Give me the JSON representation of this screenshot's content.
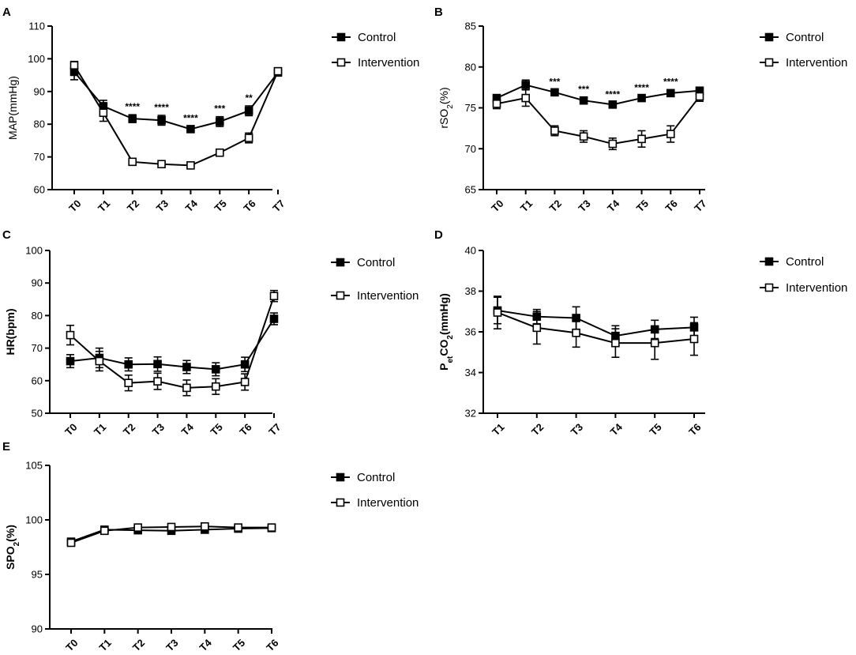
{
  "figure": {
    "legend_labels": {
      "control": "Control",
      "intervention": "Intervention"
    },
    "colors": {
      "line": "#000000",
      "control_fill": "#000000",
      "intervention_fill": "#ffffff"
    }
  },
  "chart_data": [
    {
      "id": "A",
      "panel_label": "A",
      "type": "line",
      "ylabel": "MAP(mmHg)",
      "ylabel_main": "MAP(mmHg)",
      "ylabel_sub": "",
      "ylabel_post": "",
      "ylabel_bold": false,
      "ylim": [
        60,
        110
      ],
      "yticks": [
        60,
        70,
        80,
        90,
        100,
        110
      ],
      "categories": [
        "T0",
        "T1",
        "T2",
        "T3",
        "T4",
        "T5",
        "T6",
        "T7"
      ],
      "series": [
        {
          "name": "Control",
          "values": [
            96,
            85.5,
            81.7,
            81.2,
            78.5,
            80.8,
            84.1,
            95.8
          ],
          "errors": [
            2.4,
            1.8,
            1.2,
            1.5,
            1.0,
            1.5,
            1.5,
            0.8
          ]
        },
        {
          "name": "Intervention",
          "values": [
            98,
            83.5,
            68.5,
            67.8,
            67.4,
            71.3,
            75.8,
            96.2
          ],
          "errors": [
            1.2,
            2.6,
            0.9,
            0.5,
            0.7,
            1.0,
            1.5,
            0.6
          ]
        }
      ],
      "significance": [
        {
          "category": "T2",
          "label": "****"
        },
        {
          "category": "T3",
          "label": "****"
        },
        {
          "category": "T4",
          "label": "****"
        },
        {
          "category": "T5",
          "label": "***"
        },
        {
          "category": "T6",
          "label": "**"
        }
      ]
    },
    {
      "id": "B",
      "panel_label": "B",
      "type": "line",
      "ylabel": "rSO2(%)",
      "ylabel_main": "rSO",
      "ylabel_sub": "2",
      "ylabel_post": "(%)",
      "ylabel_bold": false,
      "ylim": [
        65,
        85
      ],
      "yticks": [
        65,
        70,
        75,
        80,
        85
      ],
      "categories": [
        "T0",
        "T1",
        "T2",
        "T3",
        "T4",
        "T5",
        "T6",
        "T7"
      ],
      "series": [
        {
          "name": "Control",
          "values": [
            76.2,
            77.8,
            76.9,
            75.9,
            75.4,
            76.2,
            76.8,
            77.1
          ],
          "errors": [
            0.4,
            0.6,
            0.3,
            0.4,
            0.3,
            0.3,
            0.4,
            0.4
          ]
        },
        {
          "name": "Intervention",
          "values": [
            75.5,
            76.2,
            72.2,
            71.5,
            70.6,
            71.2,
            71.8,
            76.4
          ],
          "errors": [
            0.6,
            1.0,
            0.6,
            0.7,
            0.7,
            1.0,
            1.0,
            0.6
          ]
        }
      ],
      "significance": [
        {
          "category": "T2",
          "label": "***"
        },
        {
          "category": "T3",
          "label": "***"
        },
        {
          "category": "T4",
          "label": "****"
        },
        {
          "category": "T5",
          "label": "****"
        },
        {
          "category": "T6",
          "label": "****"
        }
      ]
    },
    {
      "id": "C",
      "panel_label": "C",
      "type": "line",
      "ylabel": "HR(bpm)",
      "ylabel_main": "HR(bpm)",
      "ylabel_sub": "",
      "ylabel_post": "",
      "ylabel_bold": true,
      "ylim": [
        50,
        100
      ],
      "yticks": [
        50,
        60,
        70,
        80,
        90,
        100
      ],
      "categories": [
        "T0",
        "T1",
        "T2",
        "T3",
        "T4",
        "T5",
        "T6",
        "T7"
      ],
      "series": [
        {
          "name": "Control",
          "values": [
            66,
            67,
            65,
            65.1,
            64.2,
            63.5,
            65,
            79
          ],
          "errors": [
            2,
            3,
            2,
            2.2,
            2,
            2,
            2.2,
            1.8
          ]
        },
        {
          "name": "Intervention",
          "values": [
            74,
            66,
            59.3,
            59.8,
            57.8,
            58.2,
            59.6,
            86
          ],
          "errors": [
            3,
            3,
            2.4,
            2.5,
            2.4,
            2.4,
            2.5,
            1.7
          ]
        }
      ],
      "significance": []
    },
    {
      "id": "D",
      "panel_label": "D",
      "type": "line",
      "ylabel": "PetCO2(mmHg)",
      "ylabel_main": "P",
      "ylabel_sub": "et",
      "ylabel_main2": "CO",
      "ylabel_sub2": "2",
      "ylabel_post": "(mmHg)",
      "ylabel_bold": true,
      "ylim": [
        32,
        40
      ],
      "yticks": [
        32,
        34,
        36,
        38,
        40
      ],
      "categories": [
        "T1",
        "T2",
        "T3",
        "T4",
        "T5",
        "T6"
      ],
      "series": [
        {
          "name": "Control",
          "values": [
            37.05,
            36.75,
            36.68,
            35.8,
            36.12,
            36.22
          ],
          "errors": [
            0.65,
            0.35,
            0.55,
            0.5,
            0.45,
            0.5
          ]
        },
        {
          "name": "Intervention",
          "values": [
            36.95,
            36.2,
            35.95,
            35.45,
            35.45,
            35.65
          ],
          "errors": [
            0.8,
            0.8,
            0.7,
            0.7,
            0.8,
            0.8
          ]
        }
      ],
      "significance": []
    },
    {
      "id": "E",
      "panel_label": "E",
      "type": "line",
      "ylabel": "SPO2(%)",
      "ylabel_main": "SPO",
      "ylabel_sub": "2",
      "ylabel_post": "(%)",
      "ylabel_bold": true,
      "ylim": [
        90,
        105
      ],
      "yticks": [
        90,
        95,
        100,
        105
      ],
      "categories": [
        "T0",
        "T1",
        "T2",
        "T3",
        "T4",
        "T5",
        "T6"
      ],
      "series": [
        {
          "name": "Control",
          "values": [
            98,
            99.1,
            99.05,
            99,
            99.1,
            99.2,
            99.25
          ],
          "errors": [
            0.3,
            0.2,
            0.2,
            0.2,
            0.2,
            0.2,
            0.2
          ]
        },
        {
          "name": "Intervention",
          "values": [
            97.9,
            99,
            99.3,
            99.35,
            99.4,
            99.3,
            99.3
          ],
          "errors": [
            0.3,
            0.2,
            0.2,
            0.2,
            0.2,
            0.2,
            0.2
          ]
        }
      ],
      "significance": []
    }
  ]
}
